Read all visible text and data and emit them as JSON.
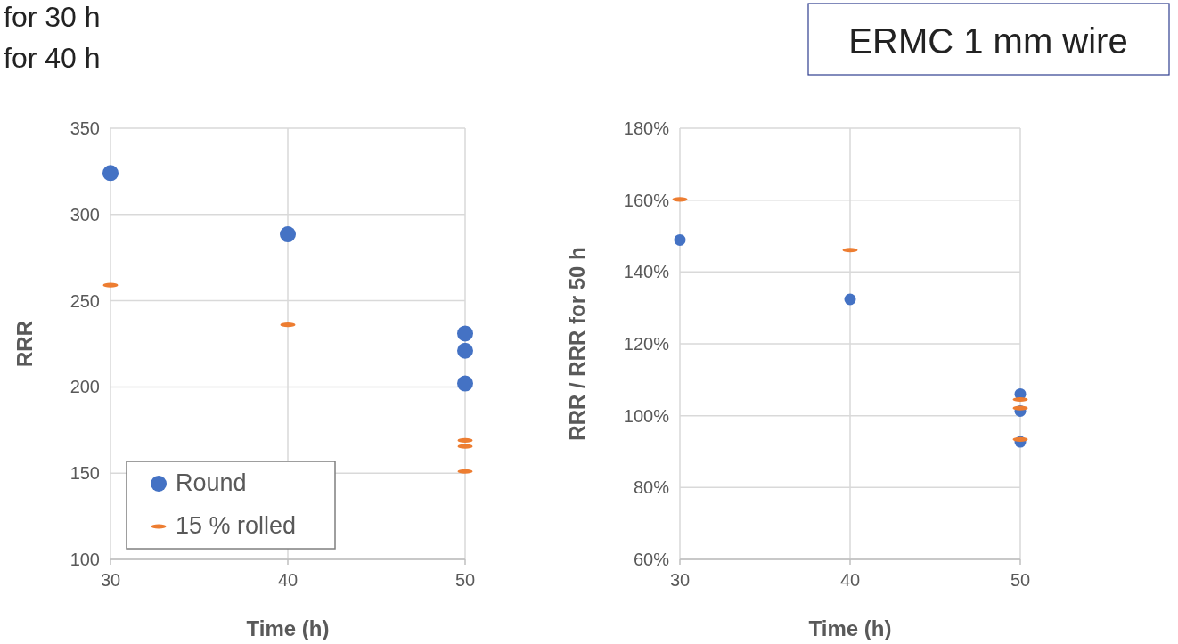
{
  "chart_data": [
    {
      "type": "scatter",
      "xlabel": "Time (h)",
      "ylabel": "RRR",
      "xlim": [
        30,
        50
      ],
      "xticks": [
        30,
        40,
        50
      ],
      "ylim": [
        100,
        350
      ],
      "yticks": [
        100,
        150,
        200,
        250,
        300,
        350
      ],
      "grid": true,
      "legend": "bottom left",
      "annotations": [
        "for 30 h",
        "for 40 h"
      ],
      "series": [
        {
          "name": "Round",
          "color": "#4472c4",
          "marker": "circle",
          "x": [
            30,
            40,
            50,
            50,
            50
          ],
          "values": [
            324,
            288.5,
            231,
            221,
            202
          ]
        },
        {
          "name": "15 % rolled",
          "color": "#ed7d31",
          "x": [
            30,
            40,
            50,
            50,
            50
          ],
          "values": [
            259,
            236,
            169,
            165.5,
            151
          ]
        }
      ]
    },
    {
      "type": "scatter",
      "xlabel": "Time (h)",
      "ylabel": "RRR / RRR for 50 h",
      "xlim": [
        30,
        50
      ],
      "xticks": [
        30,
        40,
        50
      ],
      "ylim": [
        60,
        180
      ],
      "yticks": [
        {
          "value": 60,
          "label": "60%"
        },
        {
          "value": 80,
          "label": "80%"
        },
        {
          "value": 100,
          "label": "100%"
        },
        {
          "value": 120,
          "label": "120%"
        },
        {
          "value": 140,
          "label": "140%"
        },
        {
          "value": 160,
          "label": "160%"
        },
        {
          "value": 180,
          "label": "180%"
        }
      ],
      "grid": true,
      "annotations": [
        "ERMC 1 mm wire"
      ],
      "series": [
        {
          "color": "#4472c4",
          "marker": "circle",
          "x": [
            30,
            40,
            50,
            50,
            50
          ],
          "values": [
            148.9,
            132.4,
            106,
            101.3,
            92.7
          ]
        },
        {
          "color": "#ed7d31",
          "x": [
            30,
            40,
            50,
            50,
            50
          ],
          "values": [
            160.2,
            146.1,
            104.5,
            102.1,
            93.4
          ]
        }
      ]
    }
  ]
}
